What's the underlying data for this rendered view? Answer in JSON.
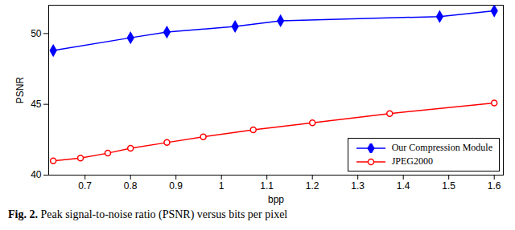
{
  "chart_data": {
    "type": "line",
    "caption": "Fig. 2. Peak signal-to-noise ratio (PSNR) versus bits per pixel",
    "x_label": "bpp",
    "y_label": "PSNR",
    "xlim": [
      0.62,
      1.62
    ],
    "xticks": [
      0.7,
      0.8,
      0.9,
      1,
      1.1,
      1.2,
      1.3,
      1.4,
      1.5,
      1.6
    ],
    "ylim": [
      40,
      52
    ],
    "yticks": [
      40,
      45,
      50
    ],
    "grid": false,
    "legend": "lower right",
    "series": [
      {
        "name": "Our Compression Module",
        "color": "#0000ff",
        "marker": "diamond",
        "x": [
          0.63,
          0.8,
          0.88,
          1.03,
          1.13,
          1.48,
          1.6
        ],
        "values": [
          48.8,
          49.7,
          50.1,
          50.5,
          50.9,
          51.2,
          51.6
        ]
      },
      {
        "name": "JPEG2000",
        "color": "#ff0000",
        "marker": "circle",
        "x": [
          0.63,
          0.69,
          0.75,
          0.8,
          0.88,
          0.96,
          1.07,
          1.2,
          1.37,
          1.6
        ],
        "values": [
          41.0,
          41.2,
          41.55,
          41.9,
          42.3,
          42.7,
          43.2,
          43.7,
          44.35,
          45.1
        ]
      }
    ]
  }
}
